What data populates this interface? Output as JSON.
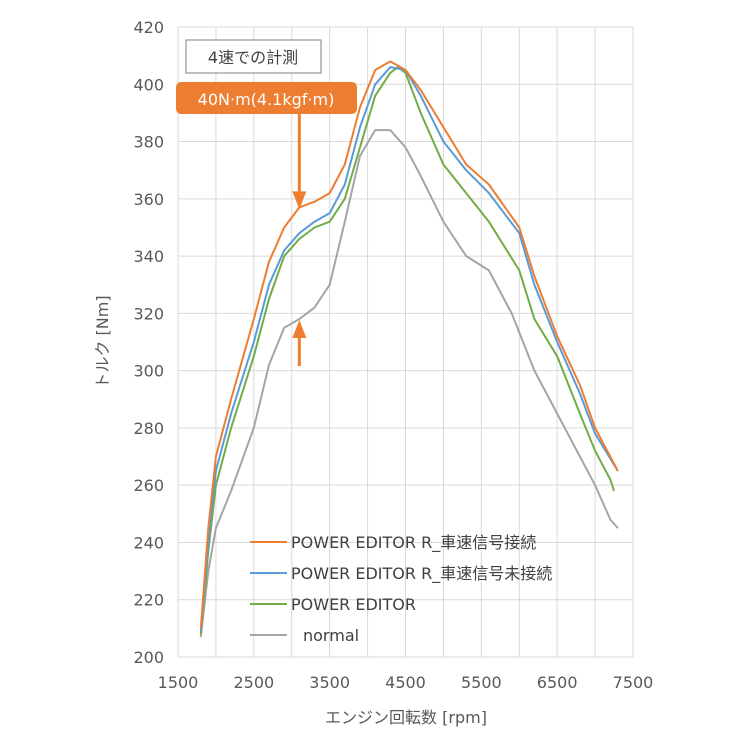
{
  "chart_data": {
    "type": "line",
    "title": "",
    "xlabel": "エンジン回転数 [rpm]",
    "ylabel": "トルク [Nm]",
    "xlim": [
      1500,
      7500
    ],
    "ylim": [
      200,
      420
    ],
    "xticks": [
      1500,
      2500,
      3500,
      4500,
      5500,
      6500,
      7500
    ],
    "yticks": [
      200,
      220,
      240,
      260,
      280,
      300,
      320,
      340,
      360,
      380,
      400,
      420
    ],
    "grid": true,
    "legend_position": "bottom-center",
    "series": [
      {
        "name": "POWER EDITOR R_車速信号接続",
        "color": "#ED7D31",
        "x": [
          1800,
          1900,
          2000,
          2200,
          2500,
          2700,
          2900,
          3100,
          3300,
          3500,
          3700,
          3900,
          4100,
          4300,
          4500,
          4700,
          5000,
          5300,
          5600,
          6000,
          6200,
          6500,
          6800,
          7000,
          7300
        ],
        "y": [
          210,
          245,
          270,
          290,
          318,
          338,
          350,
          357,
          359,
          362,
          372,
          392,
          405,
          408,
          405,
          398,
          385,
          372,
          365,
          350,
          333,
          312,
          295,
          280,
          265
        ]
      },
      {
        "name": "POWER EDITOR R_車速信号未接続",
        "color": "#5B9BD5",
        "x": [
          1800,
          1900,
          2000,
          2200,
          2500,
          2700,
          2900,
          3100,
          3300,
          3500,
          3700,
          3900,
          4100,
          4300,
          4500,
          4700,
          5000,
          5300,
          5600,
          6000,
          6200,
          6500,
          6800,
          7000,
          7300
        ],
        "y": [
          209,
          240,
          265,
          285,
          310,
          330,
          342,
          348,
          352,
          355,
          365,
          385,
          400,
          406,
          405,
          396,
          380,
          370,
          362,
          348,
          330,
          310,
          292,
          278,
          265
        ]
      },
      {
        "name": "POWER EDITOR",
        "color": "#70AD47",
        "x": [
          1800,
          1900,
          2000,
          2200,
          2500,
          2700,
          2900,
          3100,
          3300,
          3500,
          3700,
          3900,
          4100,
          4300,
          4400,
          4500,
          4700,
          5000,
          5300,
          5600,
          6000,
          6200,
          6500,
          6800,
          7000,
          7200,
          7250
        ],
        "y": [
          208,
          237,
          260,
          280,
          305,
          325,
          340,
          346,
          350,
          352,
          360,
          378,
          396,
          404,
          406,
          404,
          390,
          372,
          362,
          352,
          335,
          318,
          305,
          285,
          272,
          262,
          258
        ]
      },
      {
        "name": "normal",
        "color": "#A5A5A5",
        "x": [
          1800,
          1900,
          2000,
          2200,
          2500,
          2700,
          2900,
          3100,
          3300,
          3500,
          3700,
          3900,
          4100,
          4300,
          4500,
          4700,
          5000,
          5300,
          5600,
          5900,
          6200,
          6500,
          6800,
          7000,
          7200,
          7300
        ],
        "y": [
          207,
          230,
          245,
          258,
          280,
          302,
          315,
          318,
          322,
          330,
          352,
          375,
          384,
          384,
          378,
          368,
          352,
          340,
          335,
          320,
          300,
          285,
          270,
          260,
          248,
          245
        ]
      }
    ],
    "annotations": {
      "note": "4速での計測",
      "difference": "40N·m(4.1kgf·m)",
      "difference_rpm": 3100,
      "difference_from": 357,
      "difference_to": 317
    }
  }
}
